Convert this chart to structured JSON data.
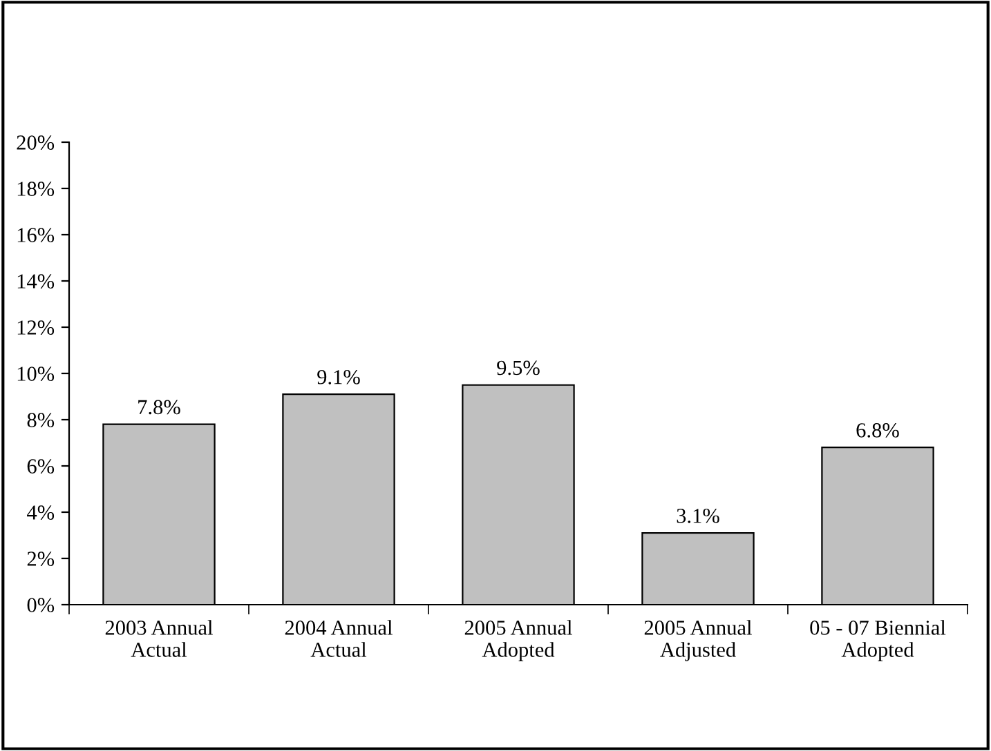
{
  "chart_data": {
    "type": "bar",
    "categories": [
      "2003 Annual\nActual",
      "2004 Annual\nActual",
      "2005 Annual\nAdopted",
      "2005 Annual\nAdjusted",
      "05 - 07 Biennial\nAdopted"
    ],
    "values": [
      7.8,
      9.1,
      9.5,
      3.1,
      6.8
    ],
    "value_labels": [
      "7.8%",
      "9.1%",
      "9.5%",
      "3.1%",
      "6.8%"
    ],
    "color": "#c0c0c0",
    "ylim": [
      0,
      20
    ],
    "yticks": [
      {
        "value": 0,
        "label": "0%"
      },
      {
        "value": 2,
        "label": "2%"
      },
      {
        "value": 4,
        "label": "4%"
      },
      {
        "value": 6,
        "label": "6%"
      },
      {
        "value": 8,
        "label": "8%"
      },
      {
        "value": 10,
        "label": "10%"
      },
      {
        "value": 12,
        "label": "12%"
      },
      {
        "value": 14,
        "label": "14%"
      },
      {
        "value": 16,
        "label": "16%"
      },
      {
        "value": 18,
        "label": "18%"
      },
      {
        "value": 20,
        "label": "20%"
      }
    ],
    "grid": false,
    "legend": false
  }
}
